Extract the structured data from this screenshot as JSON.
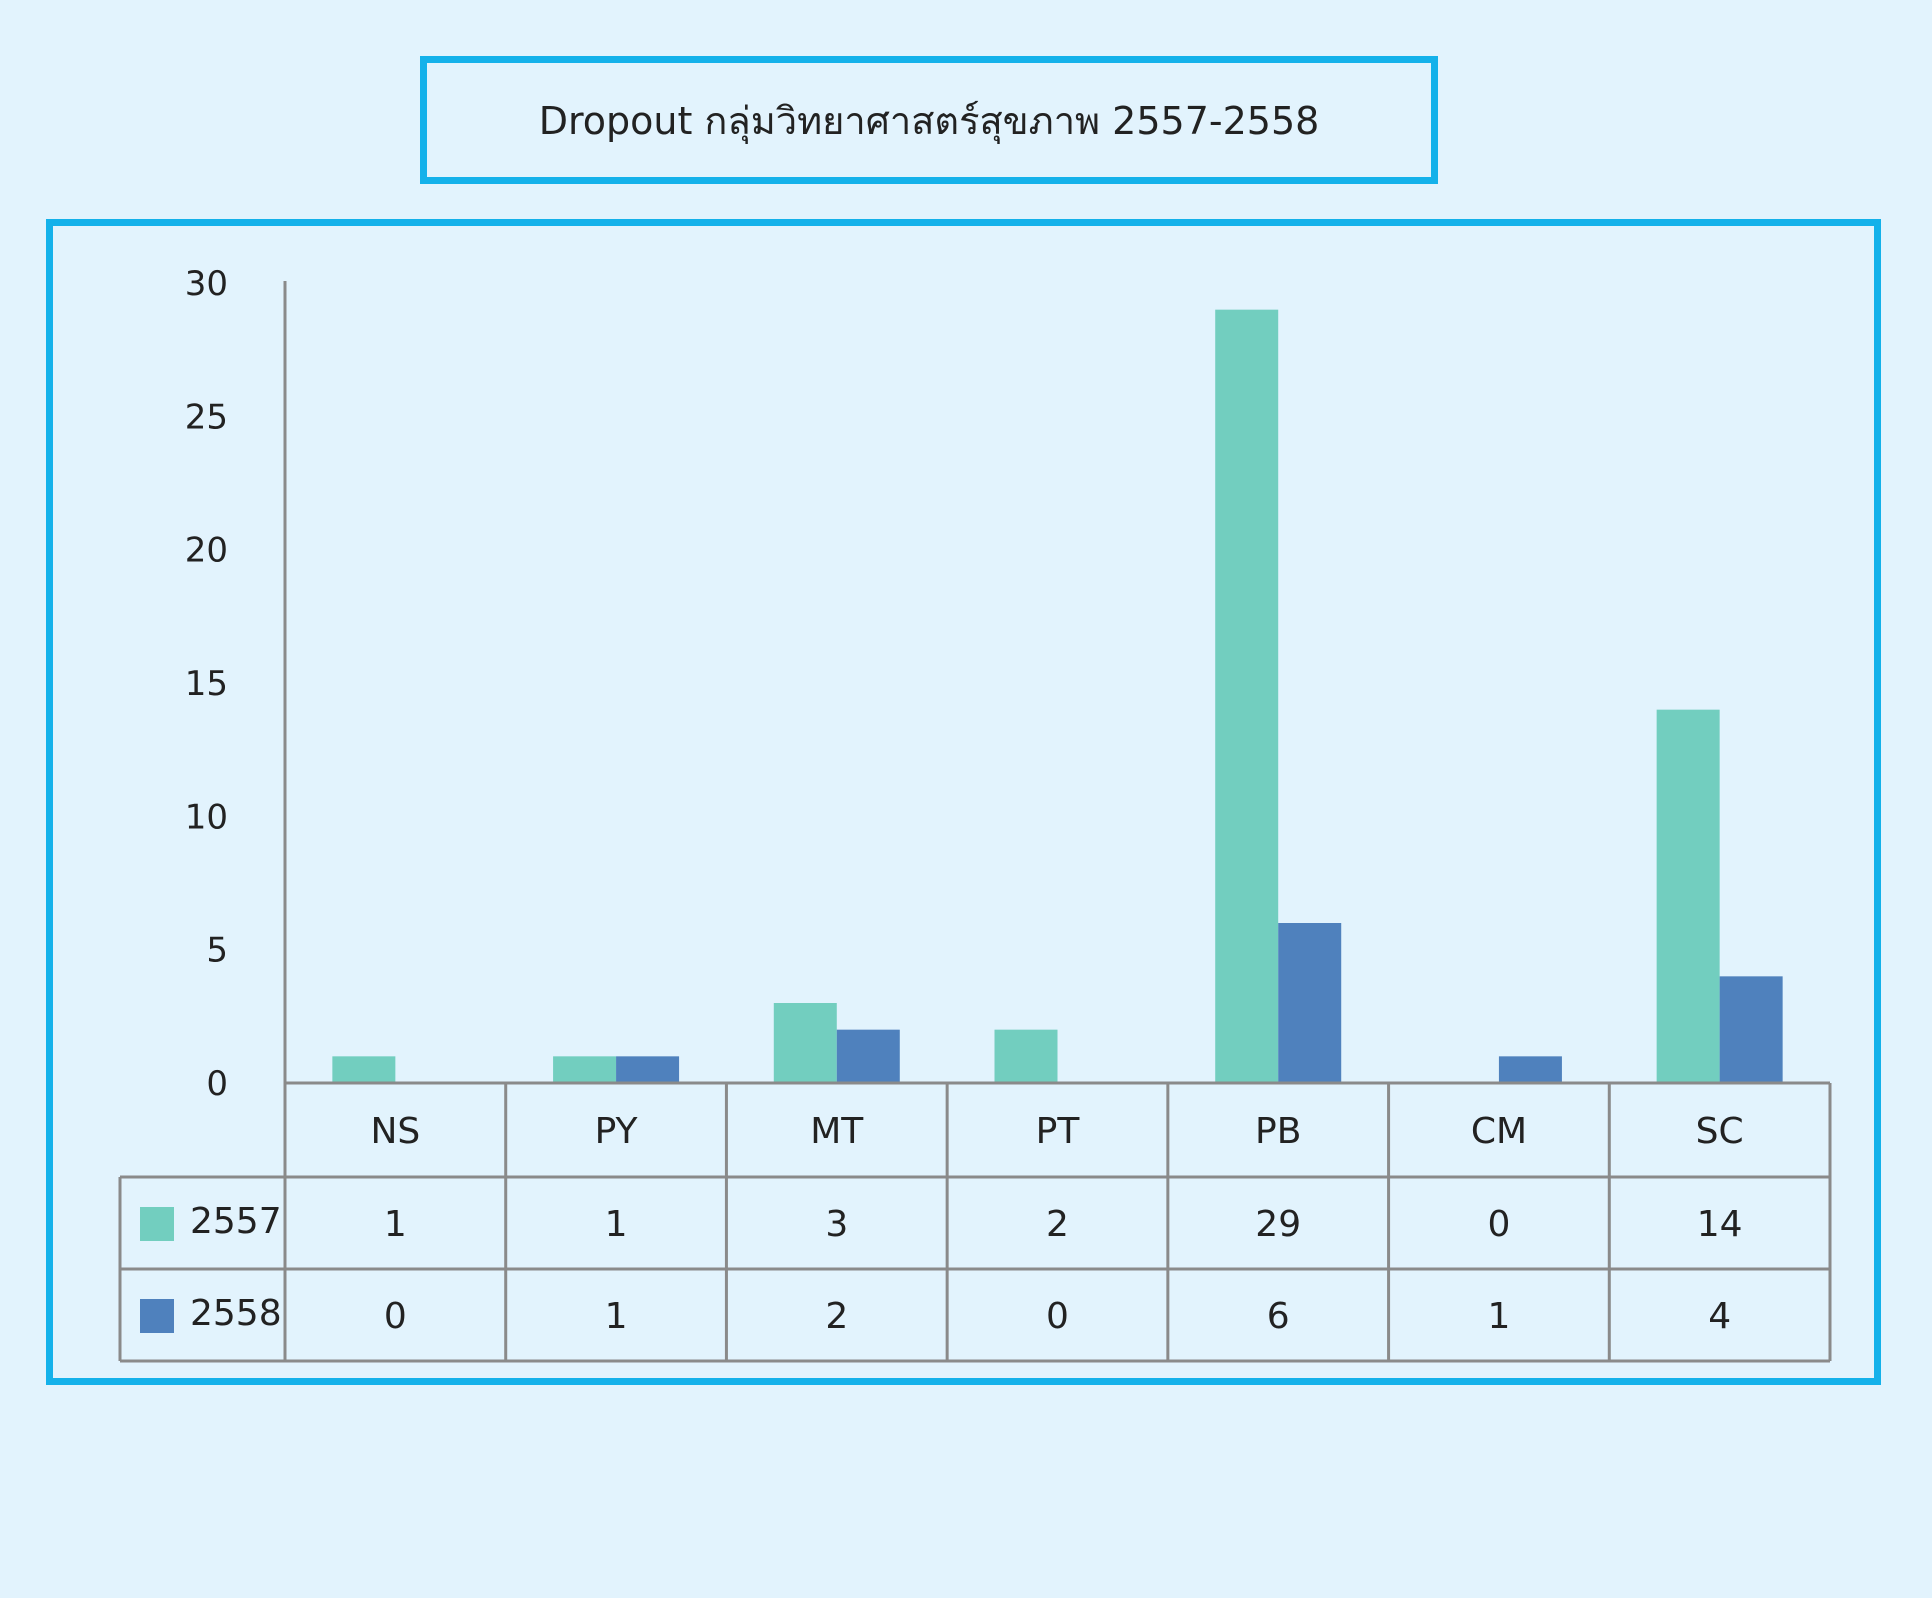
{
  "chart_data": {
    "type": "bar",
    "title": "Dropout กลุ่มวิทยาศาสตร์สุขภาพ  2557-2558",
    "categories": [
      "NS",
      "PY",
      "MT",
      "PT",
      "PB",
      "CM",
      "SC"
    ],
    "series": [
      {
        "name": "2557",
        "values": [
          1,
          1,
          3,
          2,
          29,
          0,
          14
        ],
        "color": "#72cebf"
      },
      {
        "name": "2558",
        "values": [
          0,
          1,
          2,
          0,
          6,
          1,
          4
        ],
        "color": "#4f81bd"
      }
    ],
    "ylim": [
      0,
      30
    ],
    "yticks": [
      0,
      5,
      10,
      15,
      20,
      25,
      30
    ],
    "grid": false,
    "legend": "data-table"
  }
}
